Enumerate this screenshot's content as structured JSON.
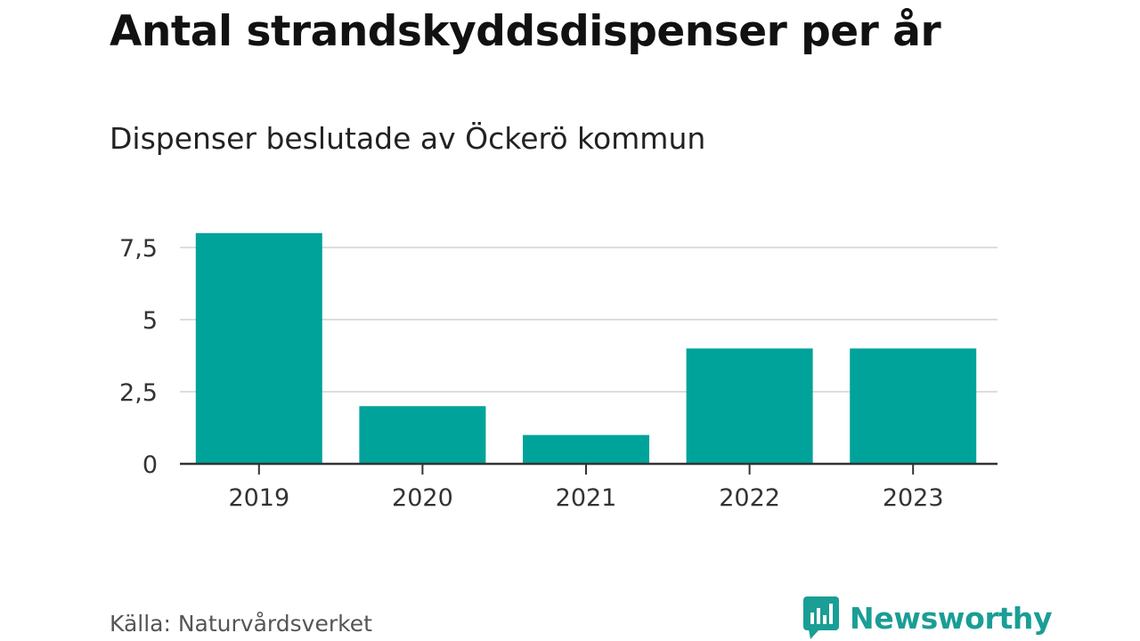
{
  "chart_data": {
    "type": "bar",
    "title": "Antal strandskyddsdispenser per år",
    "subtitle": "Dispenser beslutade av Öckerö kommun",
    "categories": [
      "2019",
      "2020",
      "2021",
      "2022",
      "2023"
    ],
    "values": [
      8,
      2,
      1,
      4,
      4
    ],
    "yticks": [
      0,
      2.5,
      5,
      7.5
    ],
    "ytick_labels": [
      "0",
      "2,5",
      "5",
      "7,5"
    ],
    "ylim": [
      0,
      8
    ],
    "xlabel": "",
    "ylabel": "",
    "grid": true,
    "bar_color": "#00a39a"
  },
  "source": "Källa: Naturvårdsverket",
  "brand": {
    "name": "Newsworthy",
    "icon": "newsworthy-logo-icon",
    "color": "#1a9e95"
  }
}
